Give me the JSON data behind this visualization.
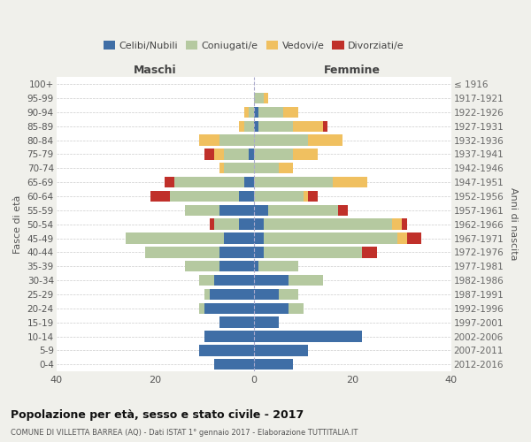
{
  "age_groups": [
    "100+",
    "95-99",
    "90-94",
    "85-89",
    "80-84",
    "75-79",
    "70-74",
    "65-69",
    "60-64",
    "55-59",
    "50-54",
    "45-49",
    "40-44",
    "35-39",
    "30-34",
    "25-29",
    "20-24",
    "15-19",
    "10-14",
    "5-9",
    "0-4"
  ],
  "birth_years": [
    "≤ 1916",
    "1917-1921",
    "1922-1926",
    "1927-1931",
    "1932-1936",
    "1937-1941",
    "1942-1946",
    "1947-1951",
    "1952-1956",
    "1957-1961",
    "1962-1966",
    "1967-1971",
    "1972-1976",
    "1977-1981",
    "1982-1986",
    "1987-1991",
    "1992-1996",
    "1997-2001",
    "2002-2006",
    "2007-2011",
    "2012-2016"
  ],
  "colors": {
    "celibi": "#3f6ea6",
    "coniugati": "#b5c9a0",
    "vedovi": "#f0c060",
    "divorziati": "#c0302a"
  },
  "male": {
    "celibi": [
      0,
      0,
      0,
      0,
      0,
      1,
      0,
      2,
      3,
      7,
      3,
      6,
      7,
      7,
      8,
      9,
      10,
      7,
      10,
      11,
      8
    ],
    "coniugati": [
      0,
      0,
      1,
      2,
      7,
      5,
      6,
      14,
      14,
      7,
      5,
      20,
      15,
      7,
      3,
      1,
      1,
      0,
      0,
      0,
      0
    ],
    "vedovi": [
      0,
      0,
      1,
      1,
      4,
      2,
      1,
      0,
      0,
      0,
      0,
      0,
      0,
      0,
      0,
      0,
      0,
      0,
      0,
      0,
      0
    ],
    "divorziati": [
      0,
      0,
      0,
      0,
      0,
      2,
      0,
      2,
      4,
      0,
      1,
      0,
      0,
      0,
      0,
      0,
      0,
      0,
      0,
      0,
      0
    ]
  },
  "female": {
    "celibi": [
      0,
      0,
      1,
      1,
      0,
      0,
      0,
      0,
      0,
      3,
      2,
      2,
      2,
      1,
      7,
      5,
      7,
      5,
      22,
      11,
      8
    ],
    "coniugati": [
      0,
      2,
      5,
      7,
      11,
      8,
      5,
      16,
      10,
      14,
      26,
      27,
      20,
      8,
      7,
      4,
      3,
      0,
      0,
      0,
      0
    ],
    "vedovi": [
      0,
      1,
      3,
      6,
      7,
      5,
      3,
      7,
      1,
      0,
      2,
      2,
      0,
      0,
      0,
      0,
      0,
      0,
      0,
      0,
      0
    ],
    "divorziati": [
      0,
      0,
      0,
      1,
      0,
      0,
      0,
      0,
      2,
      2,
      1,
      3,
      3,
      0,
      0,
      0,
      0,
      0,
      0,
      0,
      0
    ]
  },
  "xlim": 40,
  "title": "Popolazione per età, sesso e stato civile - 2017",
  "subtitle": "COMUNE DI VILLETTA BARREA (AQ) - Dati ISTAT 1° gennaio 2017 - Elaborazione TUTTITALIA.IT",
  "ylabel_left": "Fasce di età",
  "ylabel_right": "Anni di nascita",
  "xlabel_left": "Maschi",
  "xlabel_right": "Femmine",
  "bg_color": "#f0f0eb",
  "plot_bg": "#ffffff"
}
